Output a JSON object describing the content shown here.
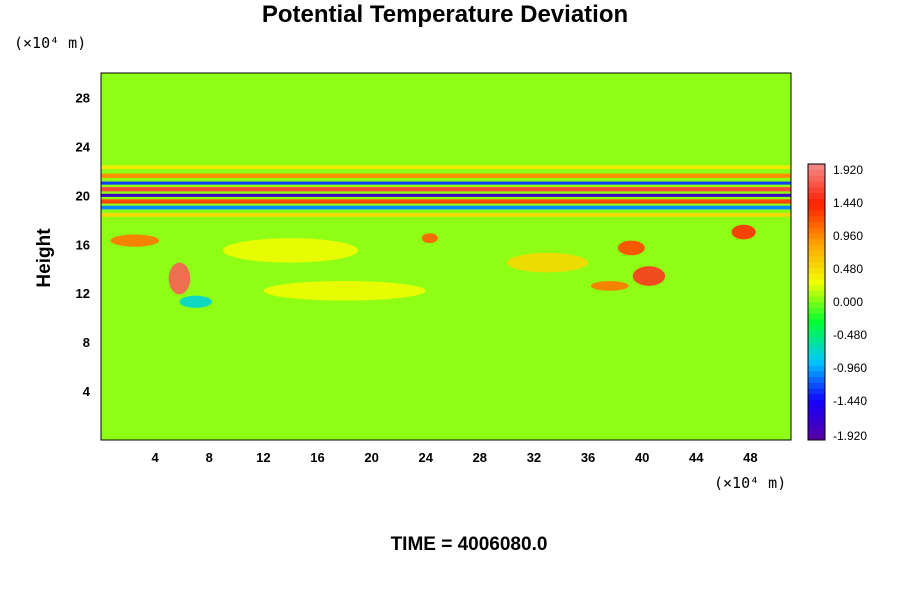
{
  "chart_data": {
    "type": "heatmap",
    "title": "Potential Temperature Deviation",
    "xlabel": "",
    "ylabel": "Height",
    "x_unit": "(×10⁴ m)",
    "y_unit": "(×10⁴ m)",
    "xlim": [
      0,
      51
    ],
    "ylim": [
      0,
      30
    ],
    "x_ticks": [
      4,
      8,
      12,
      16,
      20,
      24,
      28,
      32,
      36,
      40,
      44,
      48
    ],
    "y_ticks": [
      4,
      8,
      12,
      16,
      20,
      24,
      28
    ],
    "colorbar": {
      "min": -1.92,
      "max": 1.92,
      "labels": [
        "1.920",
        "1.440",
        "0.960",
        "0.480",
        "0.000",
        "-0.480",
        "-0.960",
        "-1.440",
        "-1.920"
      ],
      "colors": [
        "#5a00a0",
        "#1400ff",
        "#00c8ff",
        "#00ff30",
        "#f0ff00",
        "#ffa000",
        "#ff1e00",
        "#f28c8c"
      ]
    },
    "background_value": 0.05,
    "features": [
      {
        "kind": "band",
        "y": 21.6,
        "x0": 0,
        "x1": 51,
        "thickness": 0.35,
        "value": 0.9
      },
      {
        "kind": "band",
        "y": 21.0,
        "x0": 0,
        "x1": 51,
        "thickness": 0.25,
        "value": -1.2
      },
      {
        "kind": "band",
        "y": 20.5,
        "x0": 0,
        "x1": 51,
        "thickness": 0.35,
        "value": 1.6
      },
      {
        "kind": "band",
        "y": 20.0,
        "x0": 0,
        "x1": 51,
        "thickness": 0.25,
        "value": -1.7
      },
      {
        "kind": "band",
        "y": 19.5,
        "x0": 0,
        "x1": 51,
        "thickness": 0.35,
        "value": 1.2
      },
      {
        "kind": "band",
        "y": 19.0,
        "x0": 0,
        "x1": 51,
        "thickness": 0.3,
        "value": -1.0
      },
      {
        "kind": "band",
        "y": 18.4,
        "x0": 0,
        "x1": 51,
        "thickness": 0.3,
        "value": 0.5
      },
      {
        "kind": "band",
        "y": 22.3,
        "x0": 0,
        "x1": 51,
        "thickness": 0.3,
        "value": 0.4
      },
      {
        "kind": "blob",
        "x": 5.8,
        "y": 13.2,
        "rx": 0.8,
        "ry": 1.3,
        "value": 1.7
      },
      {
        "kind": "blob",
        "x": 2.5,
        "y": 16.3,
        "rx": 1.8,
        "ry": 0.5,
        "value": 1.0
      },
      {
        "kind": "blob",
        "x": 7.0,
        "y": 11.3,
        "rx": 1.2,
        "ry": 0.5,
        "value": -0.7
      },
      {
        "kind": "blob",
        "x": 24.3,
        "y": 16.5,
        "rx": 0.6,
        "ry": 0.4,
        "value": 1.1
      },
      {
        "kind": "blob",
        "x": 40.5,
        "y": 13.4,
        "rx": 1.2,
        "ry": 0.8,
        "value": 1.5
      },
      {
        "kind": "blob",
        "x": 39.2,
        "y": 15.7,
        "rx": 1.0,
        "ry": 0.6,
        "value": 1.2
      },
      {
        "kind": "blob",
        "x": 37.6,
        "y": 12.6,
        "rx": 1.4,
        "ry": 0.4,
        "value": 1.0
      },
      {
        "kind": "blob",
        "x": 47.5,
        "y": 17.0,
        "rx": 0.9,
        "ry": 0.6,
        "value": 1.3
      },
      {
        "kind": "blob",
        "x": 33.0,
        "y": 14.5,
        "rx": 3.0,
        "ry": 0.8,
        "value": 0.5
      },
      {
        "kind": "blob",
        "x": 14.0,
        "y": 15.5,
        "rx": 5.0,
        "ry": 1.0,
        "value": 0.3
      },
      {
        "kind": "blob",
        "x": 18.0,
        "y": 12.2,
        "rx": 6.0,
        "ry": 0.8,
        "value": 0.3
      }
    ]
  },
  "footer": {
    "time_text": "TIME = 4006080.0"
  }
}
